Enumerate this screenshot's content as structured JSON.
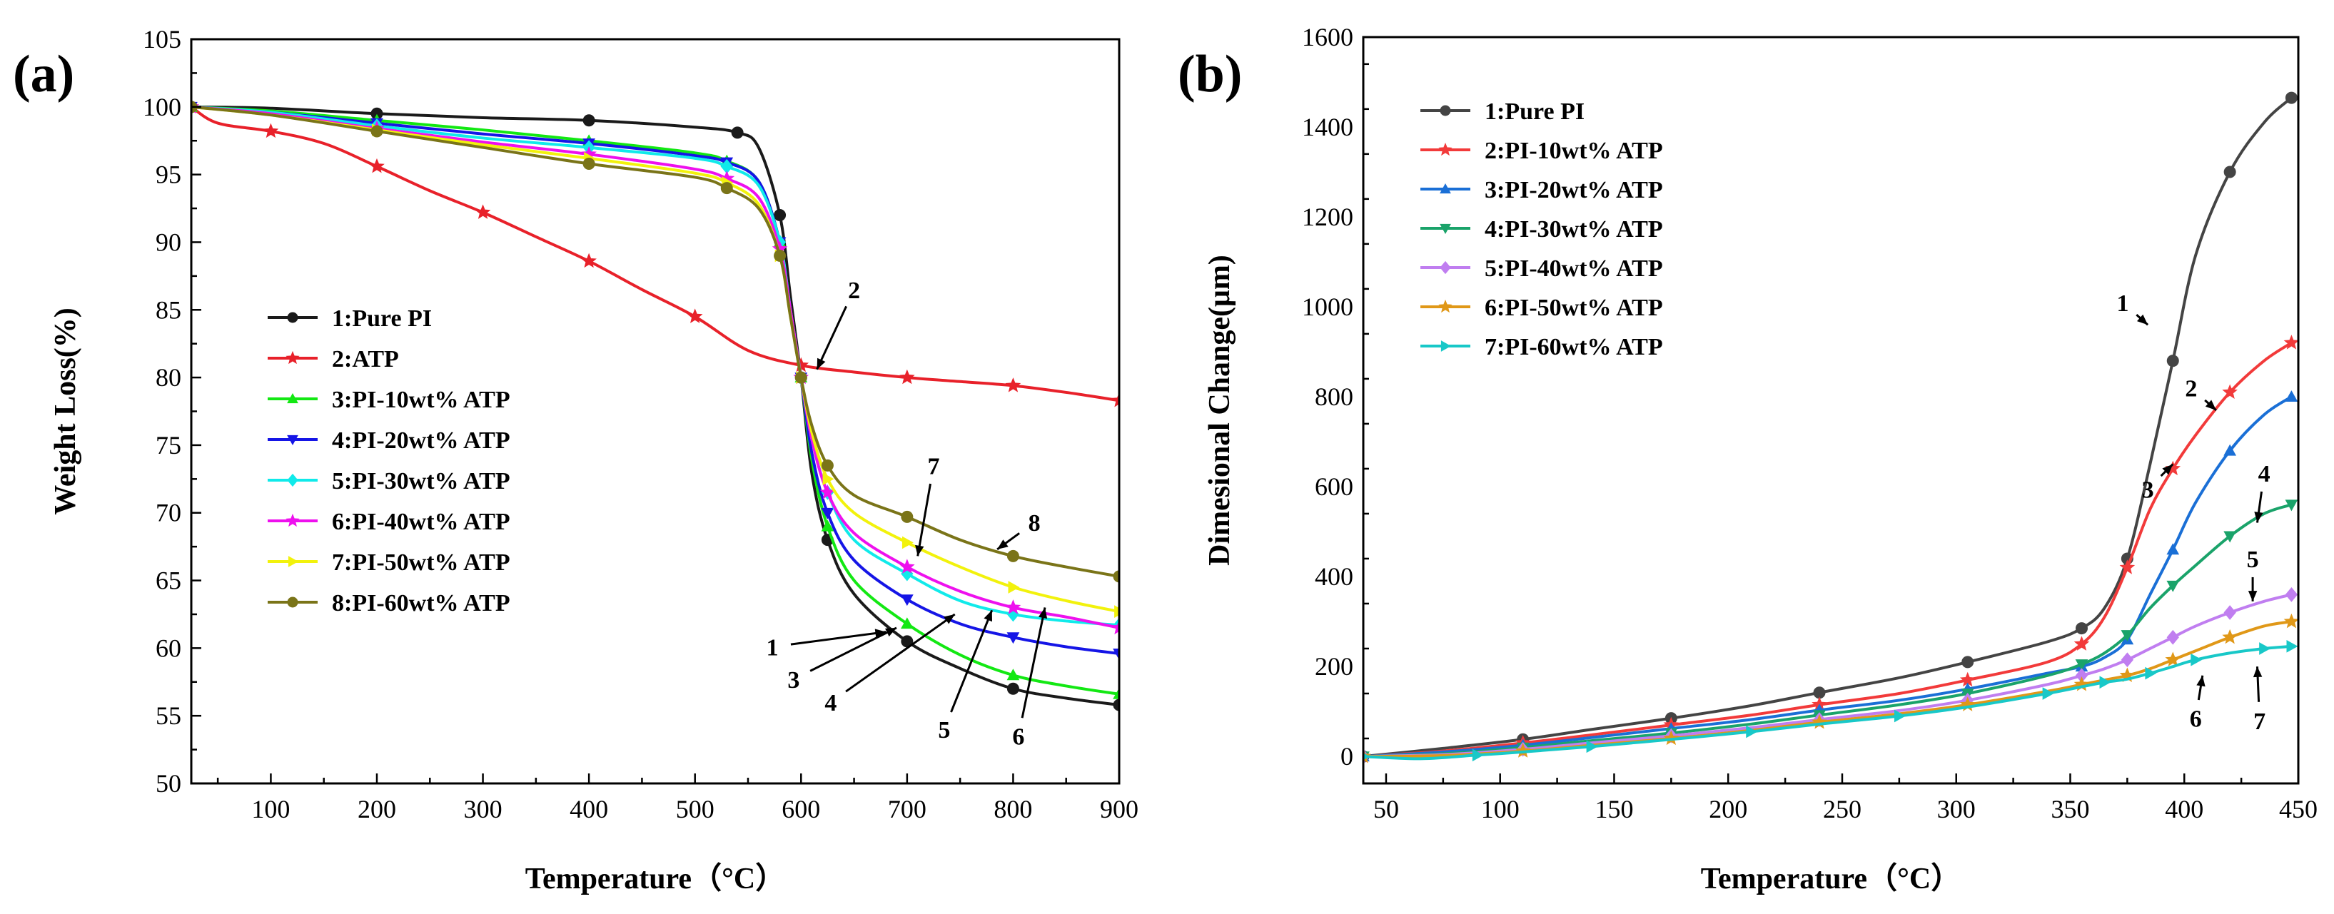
{
  "chart_data": [
    {
      "id": "a",
      "panel_label": "(a)",
      "type": "line",
      "xlabel": "Temperature（°C）",
      "ylabel": "Weight Loss(%)",
      "xlim": [
        25,
        900
      ],
      "ylim": [
        50,
        105
      ],
      "xticks": [
        100,
        200,
        300,
        400,
        500,
        600,
        700,
        800,
        900
      ],
      "yticks": [
        50,
        55,
        60,
        65,
        70,
        75,
        80,
        85,
        90,
        95,
        100,
        105
      ],
      "legend_position": "center-left",
      "series": [
        {
          "name": "1:Pure PI",
          "color": "#1a1a1a",
          "marker": "circle",
          "x": [
            25,
            100,
            200,
            300,
            400,
            500,
            540,
            560,
            580,
            590,
            600,
            610,
            625,
            650,
            700,
            750,
            800,
            850,
            900
          ],
          "y": [
            100,
            99.9,
            99.5,
            99.2,
            99.0,
            98.5,
            98.1,
            97.0,
            92.0,
            86.0,
            80.0,
            73.0,
            68.0,
            64.0,
            60.5,
            58.5,
            57.0,
            56.3,
            55.8
          ]
        },
        {
          "name": "2:ATP",
          "color": "#e8212a",
          "marker": "star",
          "x": [
            25,
            50,
            100,
            150,
            200,
            250,
            300,
            350,
            400,
            450,
            500,
            550,
            600,
            650,
            700,
            750,
            800,
            850,
            900
          ],
          "y": [
            100,
            98.8,
            98.2,
            97.3,
            95.6,
            93.8,
            92.2,
            90.4,
            88.6,
            86.5,
            84.5,
            82.0,
            80.9,
            80.4,
            80.0,
            79.7,
            79.4,
            78.9,
            78.3
          ]
        },
        {
          "name": "3:PI-10wt% ATP",
          "color": "#13e813",
          "marker": "triangle-up",
          "x": [
            25,
            100,
            200,
            300,
            400,
            500,
            530,
            560,
            580,
            590,
            600,
            610,
            625,
            650,
            700,
            750,
            800,
            850,
            900
          ],
          "y": [
            100,
            99.7,
            99.0,
            98.3,
            97.5,
            96.6,
            96.0,
            94.5,
            90.0,
            85.0,
            80.0,
            74.0,
            69.0,
            65.0,
            61.8,
            59.5,
            58.0,
            57.2,
            56.6
          ]
        },
        {
          "name": "4:PI-20wt% ATP",
          "color": "#1515e6",
          "marker": "triangle-down",
          "x": [
            25,
            100,
            200,
            300,
            400,
            500,
            530,
            560,
            580,
            590,
            600,
            610,
            625,
            650,
            700,
            750,
            800,
            850,
            900
          ],
          "y": [
            100,
            99.6,
            98.8,
            98.0,
            97.3,
            96.4,
            95.9,
            94.5,
            90.0,
            85.0,
            80.0,
            74.5,
            70.0,
            66.5,
            63.6,
            61.8,
            60.8,
            60.1,
            59.6
          ]
        },
        {
          "name": "5:PI-30wt% ATP",
          "color": "#10eaea",
          "marker": "diamond",
          "x": [
            25,
            100,
            200,
            300,
            400,
            500,
            530,
            560,
            580,
            590,
            600,
            610,
            625,
            650,
            700,
            750,
            800,
            850,
            900
          ],
          "y": [
            100,
            99.6,
            98.6,
            97.7,
            97.0,
            96.2,
            95.6,
            94.2,
            90.0,
            85.0,
            80.0,
            75.5,
            71.5,
            68.0,
            65.5,
            63.5,
            62.5,
            62.0,
            61.7
          ]
        },
        {
          "name": "6:PI-40wt% ATP",
          "color": "#ee10ee",
          "marker": "star",
          "x": [
            25,
            100,
            200,
            300,
            400,
            500,
            530,
            560,
            580,
            590,
            600,
            610,
            625,
            650,
            700,
            750,
            800,
            850,
            900
          ],
          "y": [
            100,
            99.5,
            98.4,
            97.4,
            96.5,
            95.4,
            94.7,
            93.3,
            89.5,
            85.0,
            80.0,
            75.5,
            71.5,
            68.5,
            66.0,
            64.2,
            63.0,
            62.3,
            61.5
          ]
        },
        {
          "name": "7:PI-50wt% ATP",
          "color": "#f2f20c",
          "marker": "triangle-right",
          "x": [
            25,
            100,
            200,
            300,
            400,
            500,
            530,
            560,
            580,
            590,
            600,
            610,
            625,
            650,
            700,
            750,
            800,
            850,
            900
          ],
          "y": [
            100,
            99.4,
            98.3,
            97.2,
            96.2,
            95.1,
            94.4,
            92.8,
            89.0,
            84.5,
            80.0,
            76.0,
            72.5,
            70.0,
            67.8,
            66.0,
            64.5,
            63.5,
            62.7
          ]
        },
        {
          "name": "8:PI-60wt% ATP",
          "color": "#7a7418",
          "marker": "circle",
          "x": [
            25,
            100,
            200,
            300,
            400,
            500,
            530,
            560,
            580,
            590,
            600,
            610,
            625,
            650,
            700,
            750,
            800,
            850,
            900
          ],
          "y": [
            100,
            99.4,
            98.2,
            97.0,
            95.8,
            94.8,
            94.0,
            92.5,
            89.0,
            84.5,
            80.0,
            76.5,
            73.5,
            71.3,
            69.7,
            68.0,
            66.8,
            66.0,
            65.3
          ]
        }
      ],
      "callouts": [
        {
          "label": "1",
          "text_x": 573,
          "text_y": 60.1,
          "tip_x": 680,
          "tip_y": 61.2
        },
        {
          "label": "2",
          "text_x": 650,
          "text_y": 86.5,
          "tip_x": 615,
          "tip_y": 80.6
        },
        {
          "label": "3",
          "text_x": 593,
          "text_y": 57.7,
          "tip_x": 690,
          "tip_y": 61.5
        },
        {
          "label": "4",
          "text_x": 628,
          "text_y": 56.0,
          "tip_x": 745,
          "tip_y": 62.5
        },
        {
          "label": "5",
          "text_x": 735,
          "text_y": 54.0,
          "tip_x": 780,
          "tip_y": 62.8
        },
        {
          "label": "6",
          "text_x": 805,
          "text_y": 53.5,
          "tip_x": 830,
          "tip_y": 63.0
        },
        {
          "label": "7",
          "text_x": 725,
          "text_y": 73.5,
          "tip_x": 710,
          "tip_y": 66.8
        },
        {
          "label": "8",
          "text_x": 820,
          "text_y": 69.3,
          "tip_x": 785,
          "tip_y": 67.3
        }
      ]
    },
    {
      "id": "b",
      "panel_label": "(b)",
      "type": "line",
      "xlabel": "Temperature（°C）",
      "ylabel": "Dimesional Change(μm)",
      "xlim": [
        40,
        450
      ],
      "ylim": [
        -60,
        1600
      ],
      "xticks": [
        50,
        100,
        150,
        200,
        250,
        300,
        350,
        400,
        450
      ],
      "yticks": [
        0,
        200,
        400,
        600,
        800,
        1000,
        1200,
        1400,
        1600
      ],
      "legend_position": "top-left",
      "series": [
        {
          "name": "1:Pure PI",
          "color": "#444444",
          "marker": "circle",
          "x": [
            40,
            75,
            110,
            140,
            175,
            210,
            240,
            275,
            305,
            340,
            355,
            365,
            375,
            385,
            395,
            405,
            420,
            435,
            447
          ],
          "y": [
            0,
            18,
            38,
            60,
            85,
            113,
            142,
            175,
            210,
            255,
            285,
            330,
            440,
            650,
            880,
            1115,
            1300,
            1410,
            1465
          ]
        },
        {
          "name": "2:PI-10wt% ATP",
          "color": "#f23a3a",
          "marker": "star",
          "x": [
            40,
            75,
            110,
            140,
            175,
            210,
            240,
            275,
            305,
            340,
            355,
            365,
            375,
            385,
            395,
            405,
            420,
            435,
            447
          ],
          "y": [
            0,
            12,
            30,
            48,
            70,
            92,
            115,
            140,
            170,
            210,
            250,
            310,
            420,
            550,
            640,
            715,
            810,
            880,
            920
          ]
        },
        {
          "name": "3:PI-20wt% ATP",
          "color": "#1a6fd6",
          "marker": "triangle-up",
          "x": [
            40,
            75,
            110,
            140,
            175,
            210,
            240,
            275,
            305,
            340,
            355,
            365,
            375,
            385,
            395,
            405,
            420,
            435,
            447
          ],
          "y": [
            0,
            10,
            25,
            42,
            62,
            82,
            103,
            125,
            150,
            185,
            200,
            220,
            260,
            360,
            460,
            565,
            680,
            760,
            800
          ]
        },
        {
          "name": "4:PI-30wt% ATP",
          "color": "#1aa36a",
          "marker": "triangle-down",
          "x": [
            40,
            75,
            110,
            140,
            175,
            210,
            240,
            275,
            305,
            340,
            355,
            365,
            375,
            385,
            395,
            405,
            420,
            435,
            447
          ],
          "y": [
            0,
            6,
            20,
            35,
            52,
            72,
            92,
            115,
            140,
            180,
            205,
            230,
            270,
            330,
            380,
            425,
            490,
            540,
            560
          ]
        },
        {
          "name": "5:PI-40wt% ATP",
          "color": "#c07ef0",
          "marker": "diamond",
          "x": [
            40,
            75,
            110,
            140,
            175,
            210,
            240,
            275,
            305,
            340,
            355,
            365,
            375,
            385,
            395,
            405,
            420,
            435,
            447
          ],
          "y": [
            0,
            4,
            16,
            30,
            46,
            64,
            82,
            102,
            125,
            160,
            180,
            195,
            215,
            240,
            265,
            290,
            320,
            345,
            360
          ]
        },
        {
          "name": "6:PI-50wt% ATP",
          "color": "#e09818",
          "marker": "star",
          "x": [
            40,
            75,
            110,
            140,
            175,
            210,
            240,
            275,
            305,
            340,
            355,
            365,
            375,
            385,
            395,
            405,
            420,
            435,
            447
          ],
          "y": [
            0,
            2,
            12,
            25,
            40,
            58,
            76,
            95,
            115,
            145,
            160,
            170,
            180,
            195,
            215,
            235,
            265,
            290,
            300
          ]
        },
        {
          "name": "7:PI-60wt% ATP",
          "color": "#18c8c8",
          "marker": "triangle-right",
          "x": [
            40,
            65,
            90,
            110,
            140,
            175,
            210,
            240,
            275,
            305,
            340,
            355,
            365,
            375,
            385,
            395,
            405,
            420,
            435,
            447
          ],
          "y": [
            0,
            -5,
            3,
            10,
            22,
            38,
            55,
            72,
            90,
            110,
            140,
            155,
            165,
            172,
            185,
            200,
            215,
            230,
            240,
            245
          ]
        }
      ],
      "callouts": [
        {
          "label": "1",
          "text_x": 373,
          "text_y": 1010,
          "tip_x": 384,
          "tip_y": 960
        },
        {
          "label": "2",
          "text_x": 403,
          "text_y": 820,
          "tip_x": 414,
          "tip_y": 770
        },
        {
          "label": "3",
          "text_x": 384,
          "text_y": 595,
          "tip_x": 395,
          "tip_y": 650
        },
        {
          "label": "4",
          "text_x": 435,
          "text_y": 630,
          "tip_x": 432,
          "tip_y": 520
        },
        {
          "label": "5",
          "text_x": 430,
          "text_y": 440,
          "tip_x": 430,
          "tip_y": 345
        },
        {
          "label": "6",
          "text_x": 405,
          "text_y": 85,
          "tip_x": 408,
          "tip_y": 180
        },
        {
          "label": "7",
          "text_x": 433,
          "text_y": 80,
          "tip_x": 432,
          "tip_y": 200
        }
      ]
    }
  ]
}
